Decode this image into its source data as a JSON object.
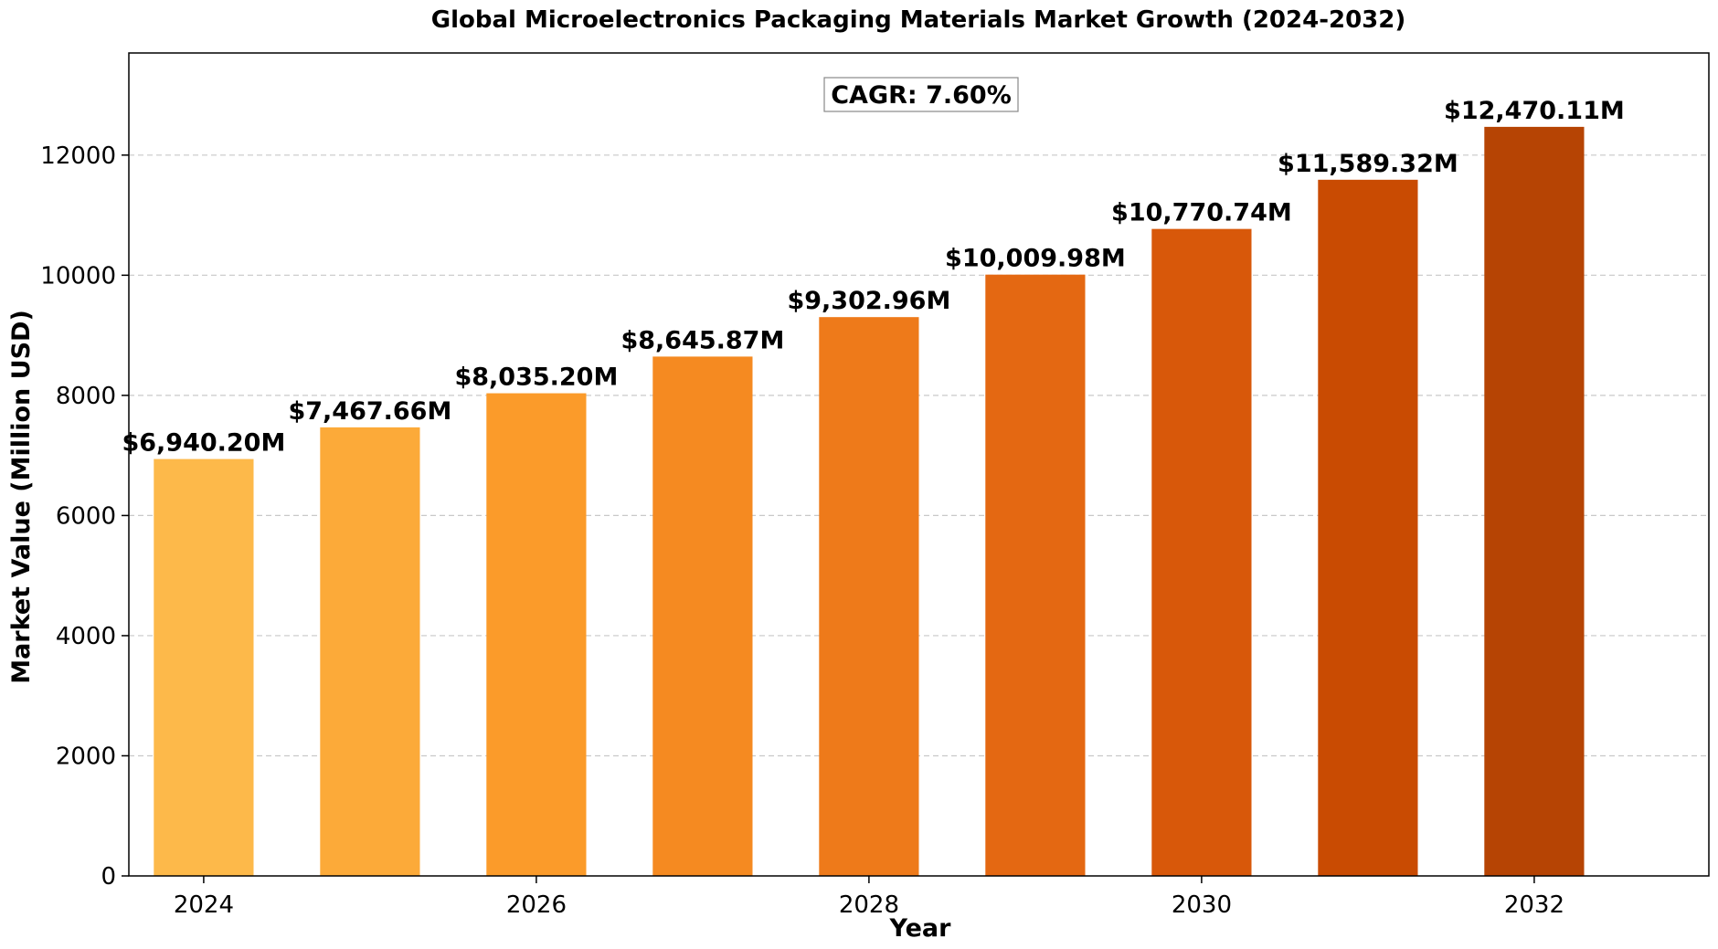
{
  "chart_data": {
    "type": "bar",
    "title": "Global Microelectronics Packaging Materials Market Growth (2024-2032)",
    "xlabel": "Year",
    "ylabel": "Market Value (Million USD)",
    "categories": [
      2024,
      2025,
      2026,
      2027,
      2028,
      2029,
      2030,
      2031,
      2032
    ],
    "values": [
      6940.2,
      7467.66,
      8035.2,
      8645.87,
      9302.96,
      10009.98,
      10770.74,
      11589.32,
      12470.11
    ],
    "value_labels": [
      "$6,940.20M",
      "$7,467.66M",
      "$8,035.20M",
      "$8,645.87M",
      "$9,302.96M",
      "$10,009.98M",
      "$10,770.74M",
      "$11,589.32M",
      "$12,470.11M"
    ],
    "bar_colors": [
      "#fdb94a",
      "#fcaa39",
      "#fb9b2a",
      "#f58a21",
      "#ee7a1a",
      "#e46812",
      "#d8580a",
      "#c94b02",
      "#b64404"
    ],
    "ylim": [
      0,
      13700
    ],
    "yticks": [
      0,
      2000,
      4000,
      6000,
      8000,
      10000,
      12000
    ],
    "xticks": [
      2024,
      2026,
      2028,
      2030,
      2032
    ],
    "grid": "y-axis dashed",
    "annotation": "CAGR: 7.60%"
  }
}
